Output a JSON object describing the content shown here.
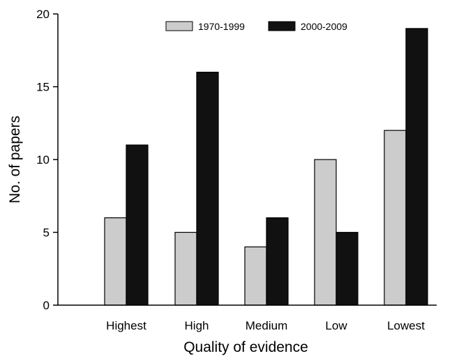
{
  "chart_data": {
    "type": "bar",
    "title": "",
    "xlabel": "Quality of evidence",
    "ylabel": "No. of papers",
    "categories": [
      "Highest",
      "High",
      "Medium",
      "Low",
      "Lowest"
    ],
    "series": [
      {
        "name": "1970-1999",
        "color": "#cccccc",
        "values": [
          6,
          5,
          4,
          10,
          12
        ]
      },
      {
        "name": "2000-2009",
        "color": "#111111",
        "values": [
          11,
          16,
          6,
          5,
          19
        ]
      }
    ],
    "ylim": [
      0,
      20
    ],
    "yticks": [
      0,
      5,
      10,
      15,
      20
    ],
    "grid": false,
    "legend": "top-center"
  }
}
